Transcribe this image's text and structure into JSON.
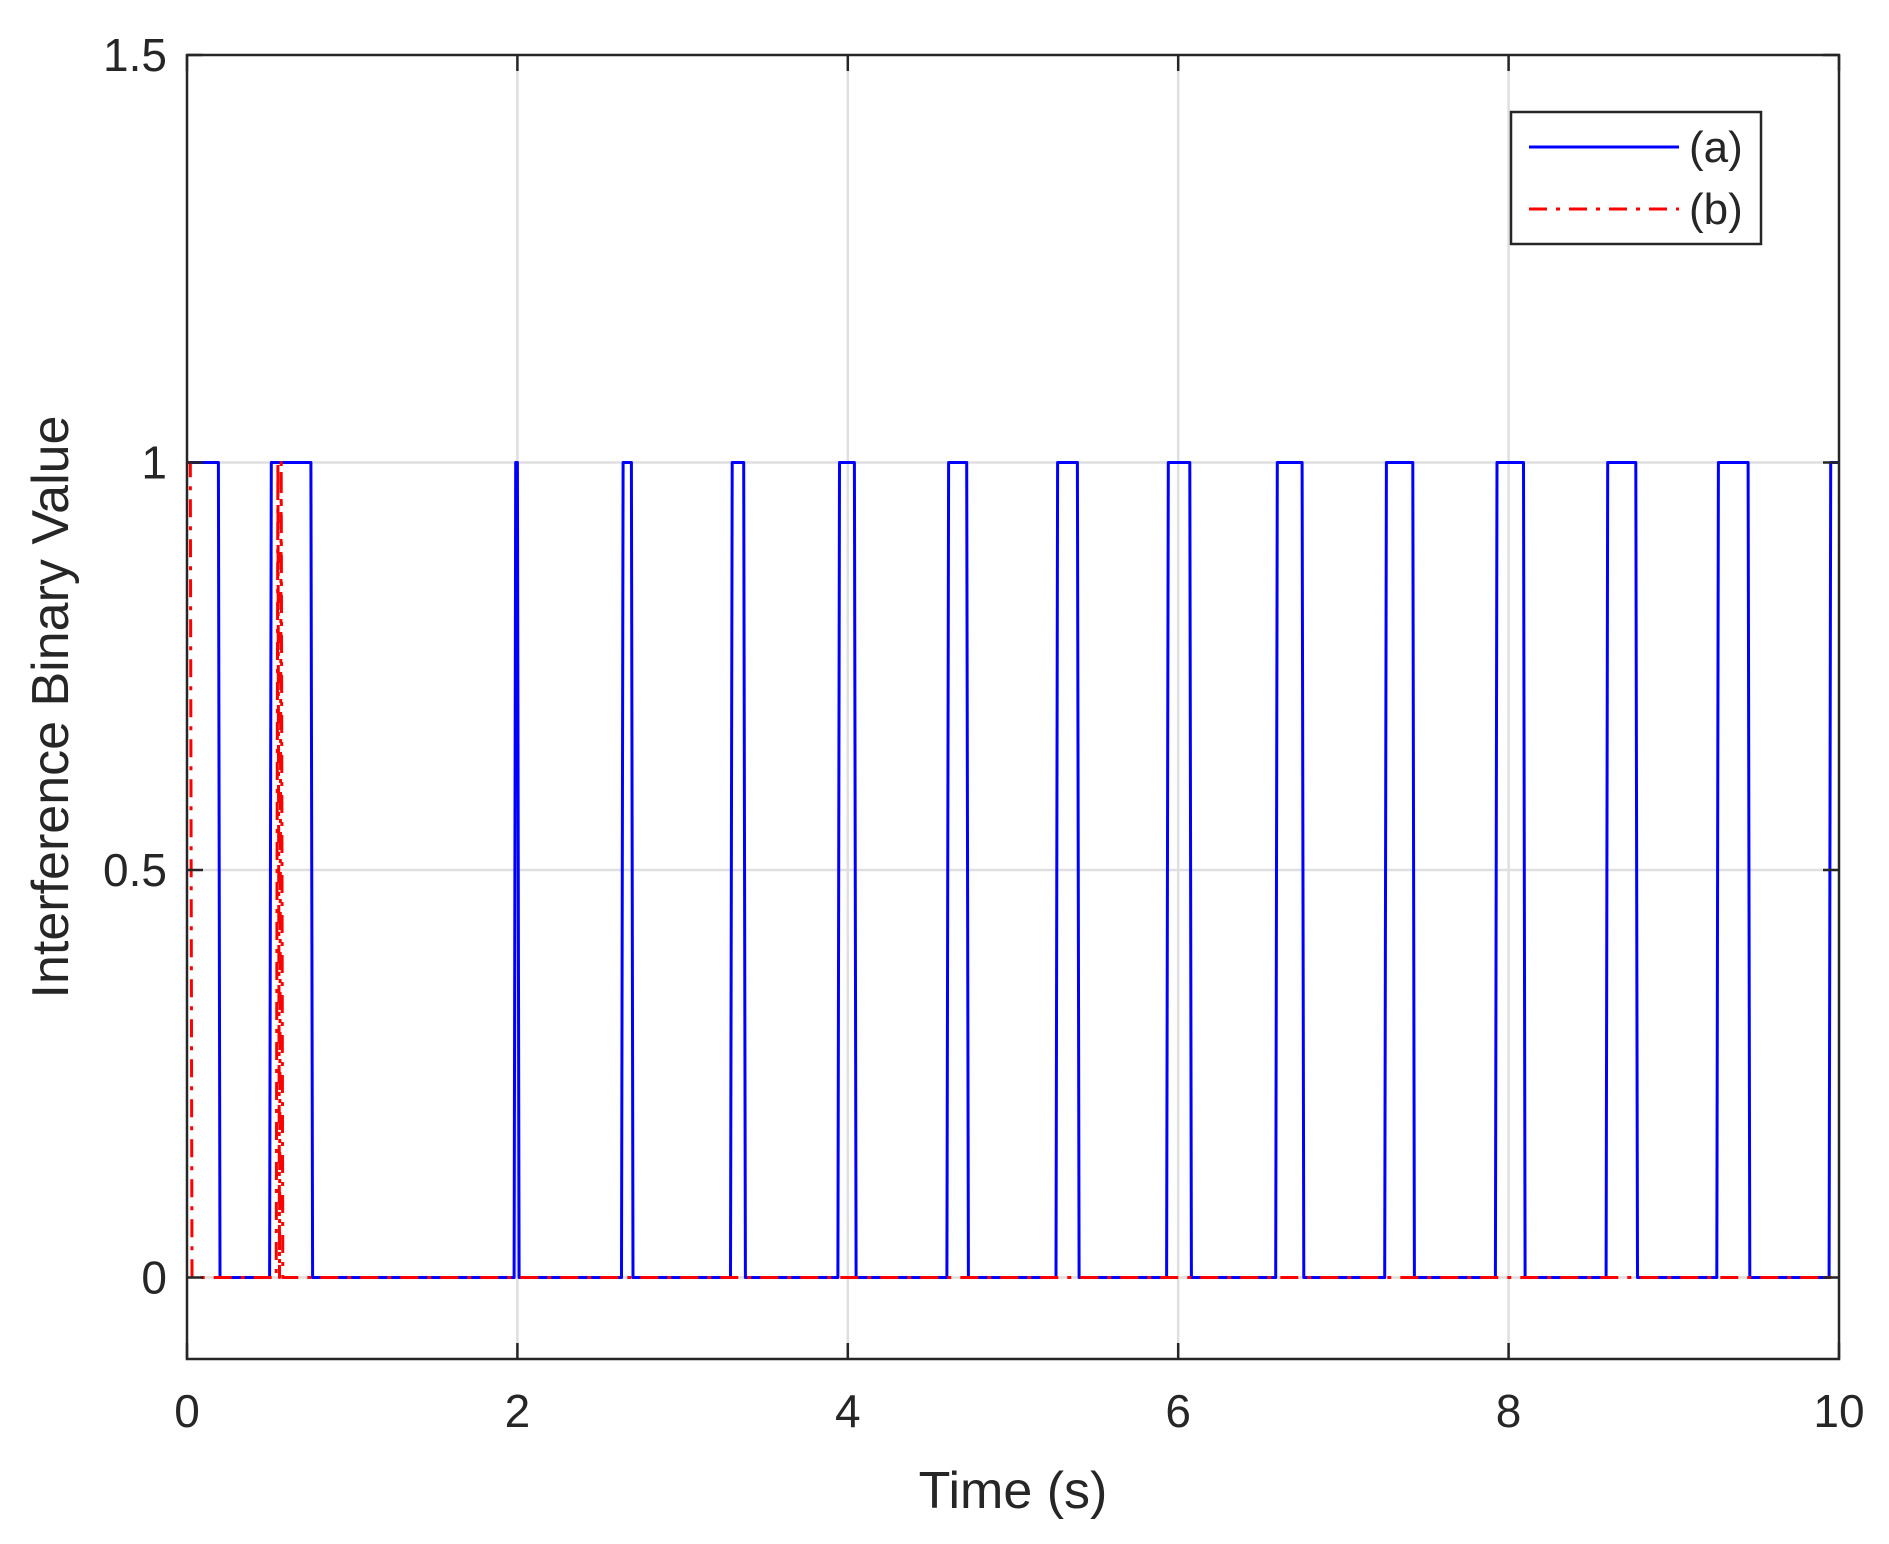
{
  "chart_data": {
    "type": "line",
    "title": "",
    "xlabel": "Time (s)",
    "ylabel": "Interference Binary Value",
    "xlim": [
      0,
      10
    ],
    "ylim": [
      -0.1,
      1.5
    ],
    "xticks": [
      0,
      2,
      4,
      6,
      8,
      10
    ],
    "xtick_labels": [
      "0",
      "2",
      "4",
      "6",
      "8",
      "10"
    ],
    "yticks": [
      0,
      0.5,
      1,
      1.5
    ],
    "ytick_labels": [
      "0",
      "0.5",
      "1",
      "1.5"
    ],
    "grid": true,
    "legend_position": "top-right",
    "series": [
      {
        "name": "(a)",
        "color": "#0000ff",
        "style": "solid",
        "x": [
          0,
          0.19,
          0.2,
          0.5,
          0.51,
          0.75,
          0.76,
          1.98,
          1.99,
          2.0,
          2.01,
          2.63,
          2.64,
          2.69,
          2.7,
          3.29,
          3.3,
          3.37,
          3.38,
          3.94,
          3.95,
          4.04,
          4.05,
          4.6,
          4.61,
          4.72,
          4.73,
          5.26,
          5.27,
          5.39,
          5.4,
          5.93,
          5.94,
          6.07,
          6.08,
          6.59,
          6.6,
          6.75,
          6.76,
          7.25,
          7.26,
          7.42,
          7.43,
          7.92,
          7.93,
          8.09,
          8.1,
          8.59,
          8.6,
          8.77,
          8.78,
          9.26,
          9.27,
          9.45,
          9.46,
          9.94,
          9.95,
          10.0
        ],
        "y": [
          1,
          1,
          0,
          0,
          1,
          1,
          0,
          0,
          1,
          1,
          0,
          0,
          1,
          1,
          0,
          0,
          1,
          1,
          0,
          0,
          1,
          1,
          0,
          0,
          1,
          1,
          0,
          0,
          1,
          1,
          0,
          0,
          1,
          1,
          0,
          0,
          1,
          1,
          0,
          0,
          1,
          1,
          0,
          0,
          1,
          1,
          0,
          0,
          1,
          1,
          0,
          0,
          1,
          1,
          0,
          0,
          1,
          1
        ]
      },
      {
        "name": "(b)",
        "color": "#ff0000",
        "style": "dash-dot",
        "x": [
          0,
          0.02,
          0.03,
          0.54,
          0.55,
          0.56,
          0.57,
          0.58,
          10.0
        ],
        "y": [
          1,
          1,
          0,
          0,
          1,
          0,
          1,
          0,
          0
        ]
      }
    ]
  }
}
